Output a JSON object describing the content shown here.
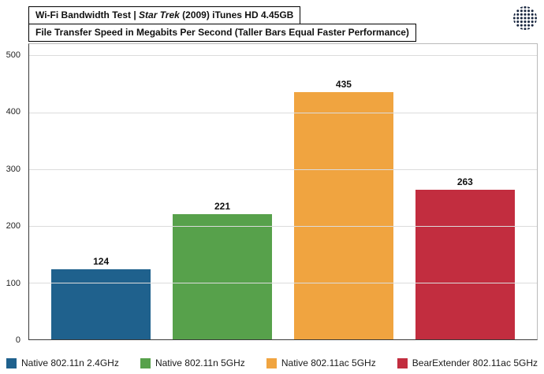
{
  "header": {
    "title_prefix": "Wi-Fi Bandwidth Test | ",
    "title_italic": "Star Trek",
    "title_suffix": " (2009) iTunes HD 4.45GB",
    "subtitle": "File Transfer Speed in Megabits Per Second (Taller Bars Equal Faster Performance)",
    "logo_icon": "dotted-globe-logo"
  },
  "chart_data": {
    "type": "bar",
    "title": "Wi-Fi Bandwidth Test | Star Trek (2009) iTunes HD 4.45GB",
    "subtitle": "File Transfer Speed in Megabits Per Second (Taller Bars Equal Faster Performance)",
    "categories": [
      "Native 802.11n 2.4GHz",
      "Native 802.11n 5GHz",
      "Native 802.11ac 5GHz",
      "BearExtender 802.11ac 5GHz"
    ],
    "values": [
      124,
      221,
      435,
      263
    ],
    "colors": [
      "#1f618d",
      "#57a14b",
      "#f0a440",
      "#c22d3f"
    ],
    "xlabel": "",
    "ylabel": "",
    "ylim": [
      0,
      500
    ],
    "yticks": [
      0,
      100,
      200,
      300,
      400,
      500
    ],
    "grid": true,
    "legend_position": "bottom"
  }
}
